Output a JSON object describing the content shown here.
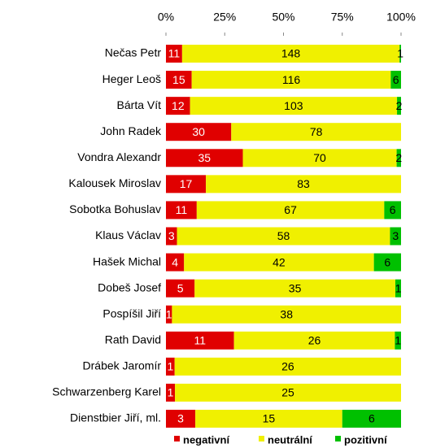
{
  "chart_data": {
    "type": "bar100h",
    "categories": [
      "Nečas Petr",
      "Heger Leoš",
      "Bárta Vít",
      "John Radek",
      "Vondra Alexandr",
      "Kalousek Miroslav",
      "Sobotka Bohuslav",
      "Klaus Václav",
      "Hašek Michal",
      "Dobeš Josef",
      "Pospíšil Jiří",
      "Rath David",
      "Drábek Jaromír",
      "Schwarzenberg  Karel",
      "Dienstbier Jiří, ml."
    ],
    "series": [
      {
        "name": "negativní",
        "color": "#e00000",
        "values": [
          11,
          15,
          12,
          30,
          35,
          17,
          11,
          3,
          4,
          5,
          1,
          11,
          1,
          1,
          3
        ]
      },
      {
        "name": "neutrální",
        "color": "#f0f000",
        "values": [
          148,
          116,
          103,
          78,
          70,
          83,
          67,
          58,
          42,
          35,
          38,
          26,
          26,
          25,
          15
        ]
      },
      {
        "name": "pozitivní",
        "color": "#00c000",
        "values": [
          1,
          6,
          2,
          null,
          2,
          null,
          6,
          3,
          6,
          1,
          null,
          1,
          null,
          null,
          6
        ]
      }
    ],
    "xlim": [
      0,
      100
    ],
    "xticks": [
      {
        "value": 0,
        "label": "0%"
      },
      {
        "value": 25,
        "label": "25%"
      },
      {
        "value": 50,
        "label": "50%"
      },
      {
        "value": 75,
        "label": "75%"
      },
      {
        "value": 100,
        "label": "100%"
      }
    ],
    "legend": "bottom"
  }
}
